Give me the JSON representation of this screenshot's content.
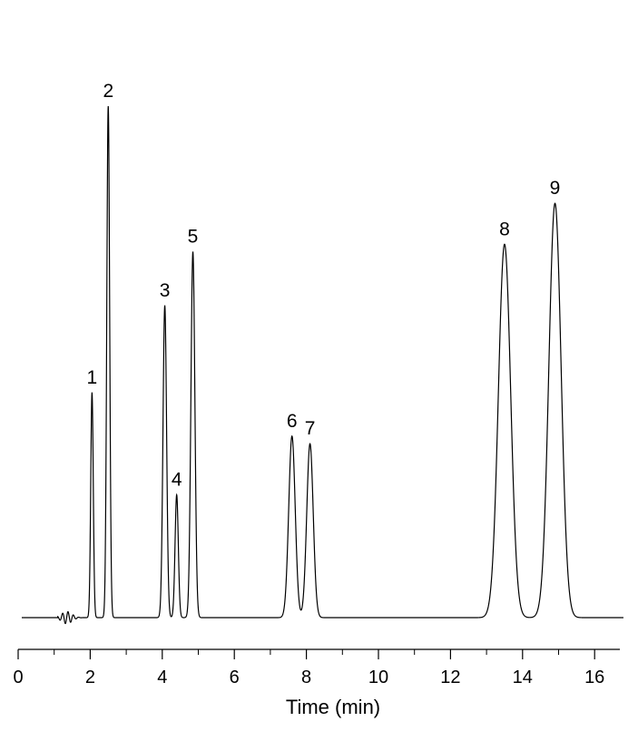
{
  "chart_data": {
    "type": "line",
    "xlabel": "Time (min)",
    "xlim": [
      0,
      16.8
    ],
    "x_ticks": [
      0,
      2,
      4,
      6,
      8,
      10,
      12,
      14,
      16
    ],
    "x_tick_labels": [
      "0",
      "2",
      "4",
      "6",
      "8",
      "10",
      "12",
      "14",
      "16"
    ],
    "minor_tick_step": 1,
    "grid": false,
    "line_color": "#000000",
    "baseline_start": 0.1,
    "peaks": [
      {
        "label": "1",
        "time": 2.05,
        "height": 0.44,
        "width": 0.035
      },
      {
        "label": "2",
        "time": 2.5,
        "height": 1.0,
        "width": 0.04
      },
      {
        "label": "3",
        "time": 4.07,
        "height": 0.61,
        "width": 0.05
      },
      {
        "label": "4",
        "time": 4.4,
        "height": 0.24,
        "width": 0.045
      },
      {
        "label": "5",
        "time": 4.85,
        "height": 0.715,
        "width": 0.055
      },
      {
        "label": "6",
        "time": 7.6,
        "height": 0.355,
        "width": 0.09
      },
      {
        "label": "7",
        "time": 8.1,
        "height": 0.34,
        "width": 0.09
      },
      {
        "label": "8",
        "time": 13.5,
        "height": 0.73,
        "width": 0.17
      },
      {
        "label": "9",
        "time": 14.9,
        "height": 0.81,
        "width": 0.17
      }
    ]
  }
}
